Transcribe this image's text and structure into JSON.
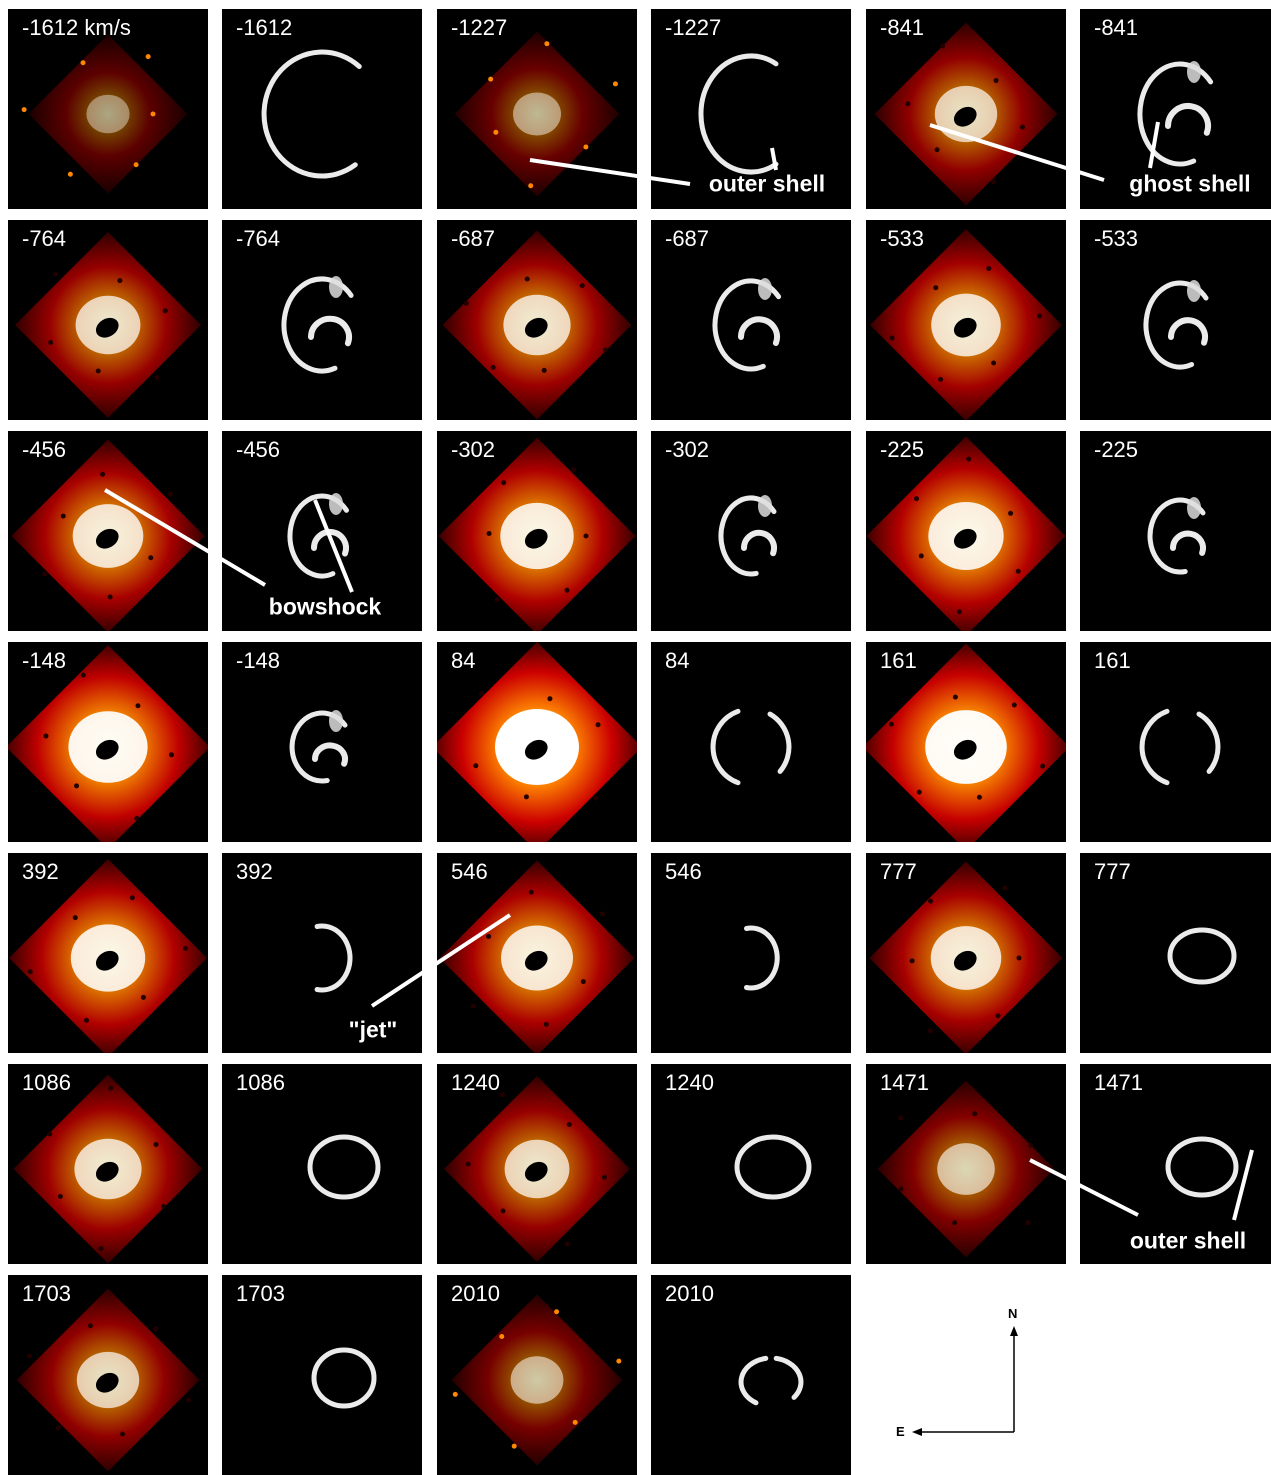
{
  "unit_suffix": " km/s",
  "panels": [
    {
      "label": "-1612",
      "kind": "obs",
      "bright": 0.15
    },
    {
      "label": "-1612",
      "kind": "model",
      "shape": "arc",
      "arc_start": 55,
      "arc_end": 310,
      "rx": 58,
      "ry": 62
    },
    {
      "label": "-1227",
      "kind": "obs",
      "bright": 0.25
    },
    {
      "label": "-1227",
      "kind": "model",
      "shape": "arc",
      "arc_start": 60,
      "arc_end": 300,
      "rx": 50,
      "ry": 58
    },
    {
      "label": "-841",
      "kind": "obs",
      "bright": 0.55
    },
    {
      "label": "-841",
      "kind": "model",
      "shape": "arc-inner",
      "arc_start": 70,
      "arc_end": 320,
      "rx": 40,
      "ry": 50
    },
    {
      "label": "-764",
      "kind": "obs",
      "bright": 0.6
    },
    {
      "label": "-764",
      "kind": "model",
      "shape": "arc-inner",
      "arc_start": 70,
      "arc_end": 320,
      "rx": 38,
      "ry": 46
    },
    {
      "label": "-687",
      "kind": "obs",
      "bright": 0.65
    },
    {
      "label": "-687",
      "kind": "model",
      "shape": "arc-inner",
      "arc_start": 70,
      "arc_end": 320,
      "rx": 36,
      "ry": 44
    },
    {
      "label": "-533",
      "kind": "obs",
      "bright": 0.7
    },
    {
      "label": "-533",
      "kind": "model",
      "shape": "arc-inner",
      "arc_start": 70,
      "arc_end": 320,
      "rx": 34,
      "ry": 42
    },
    {
      "label": "-456",
      "kind": "obs",
      "bright": 0.72
    },
    {
      "label": "-456",
      "kind": "model",
      "shape": "arc-inner",
      "arc_start": 70,
      "arc_end": 320,
      "rx": 32,
      "ry": 40
    },
    {
      "label": "-302",
      "kind": "obs",
      "bright": 0.78
    },
    {
      "label": "-302",
      "kind": "model",
      "shape": "arc-inner",
      "arc_start": 80,
      "arc_end": 320,
      "rx": 30,
      "ry": 38
    },
    {
      "label": "-225",
      "kind": "obs",
      "bright": 0.82
    },
    {
      "label": "-225",
      "kind": "model",
      "shape": "arc-inner",
      "arc_start": 80,
      "arc_end": 320,
      "rx": 30,
      "ry": 36
    },
    {
      "label": "-148",
      "kind": "obs",
      "bright": 0.9
    },
    {
      "label": "-148",
      "kind": "model",
      "shape": "arc-inner",
      "arc_start": 80,
      "arc_end": 320,
      "rx": 30,
      "ry": 34
    },
    {
      "label": "84",
      "kind": "obs",
      "bright": 1.0
    },
    {
      "label": "84",
      "kind": "model",
      "shape": "parens",
      "rx": 38,
      "ry": 38
    },
    {
      "label": "161",
      "kind": "obs",
      "bright": 0.95
    },
    {
      "label": "161",
      "kind": "model",
      "shape": "parens",
      "rx": 38,
      "ry": 38
    },
    {
      "label": "392",
      "kind": "obs",
      "bright": 0.8
    },
    {
      "label": "392",
      "kind": "model",
      "shape": "right-arc",
      "arc_start": -100,
      "arc_end": 100,
      "rx": 28,
      "ry": 32
    },
    {
      "label": "546",
      "kind": "obs",
      "bright": 0.75
    },
    {
      "label": "546",
      "kind": "model",
      "shape": "right-arc",
      "arc_start": -100,
      "arc_end": 100,
      "rx": 26,
      "ry": 30
    },
    {
      "label": "777",
      "kind": "obs",
      "bright": 0.72
    },
    {
      "label": "777",
      "kind": "model",
      "shape": "ellipse",
      "rx": 32,
      "ry": 26
    },
    {
      "label": "1086",
      "kind": "obs",
      "bright": 0.65
    },
    {
      "label": "1086",
      "kind": "model",
      "shape": "ellipse",
      "rx": 34,
      "ry": 30
    },
    {
      "label": "1240",
      "kind": "obs",
      "bright": 0.6
    },
    {
      "label": "1240",
      "kind": "model",
      "shape": "ellipse",
      "rx": 36,
      "ry": 30
    },
    {
      "label": "1471",
      "kind": "obs",
      "bright": 0.45
    },
    {
      "label": "1471",
      "kind": "model",
      "shape": "ellipse",
      "rx": 34,
      "ry": 28
    },
    {
      "label": "1703",
      "kind": "obs",
      "bright": 0.55
    },
    {
      "label": "1703",
      "kind": "model",
      "shape": "ellipse",
      "rx": 30,
      "ry": 28
    },
    {
      "label": "2010",
      "kind": "obs",
      "bright": 0.35
    },
    {
      "label": "2010",
      "kind": "model",
      "shape": "broken-ellipse",
      "rx": 30,
      "ry": 24
    }
  ],
  "annotations": [
    {
      "name": "outer-shell-label-top",
      "text": "outer shell"
    },
    {
      "name": "ghost-shell-label",
      "text": "ghost shell"
    },
    {
      "name": "bowshock-label",
      "text": "bowshock"
    },
    {
      "name": "jet-label",
      "text": "\"jet\""
    },
    {
      "name": "outer-shell-label-bottom",
      "text": "outer shell"
    }
  ],
  "compass": {
    "north": "N",
    "east": "E"
  },
  "colors": {
    "obs_dark": "#1a0000",
    "obs_red": "#cc0000",
    "obs_orange": "#ff8800",
    "obs_yellow": "#ffee66",
    "model_ring": "#ffffff"
  }
}
